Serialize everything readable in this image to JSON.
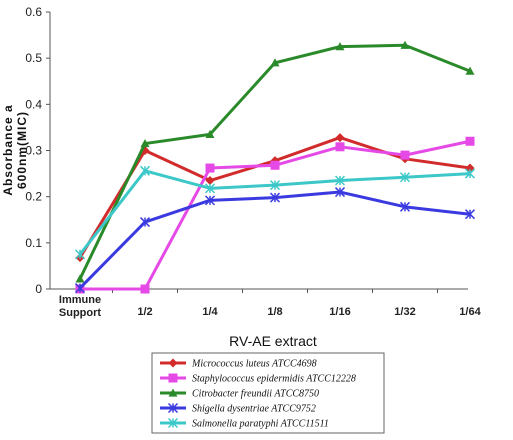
{
  "chart_data": {
    "type": "line",
    "title": "",
    "xlabel": "RV-AE extract",
    "ylabel_lines": [
      "Absorbance a",
      "600nm(MIC)"
    ],
    "categories": [
      {
        "lines": [
          "Immune",
          "Support"
        ]
      },
      {
        "lines": [
          "1/2"
        ]
      },
      {
        "lines": [
          "1/4"
        ]
      },
      {
        "lines": [
          "1/8"
        ]
      },
      {
        "lines": [
          "1/16"
        ]
      },
      {
        "lines": [
          "1/32"
        ]
      },
      {
        "lines": [
          "1/64"
        ]
      }
    ],
    "ylim": [
      0,
      0.6
    ],
    "yticks": [
      "0",
      "0.1",
      "0.2",
      "0.3",
      "0.4",
      "0.5",
      "0.6"
    ],
    "grid": false,
    "legend": "bottom",
    "series": [
      {
        "name": "Micrococcus luteus  ATCC4698",
        "color": "#d22b2b",
        "marker": "diamond",
        "values": [
          0.068,
          0.3,
          0.235,
          0.278,
          0.328,
          0.282,
          0.262
        ]
      },
      {
        "name": "Staphylococcus epidermidis ATCC12228",
        "color": "#e64ae6",
        "marker": "square",
        "values": [
          0.0,
          0.0,
          0.262,
          0.268,
          0.308,
          0.29,
          0.32
        ]
      },
      {
        "name": "Citrobacter freundii ATCC8750",
        "color": "#2a8a2a",
        "marker": "triangle",
        "values": [
          0.022,
          0.315,
          0.335,
          0.49,
          0.525,
          0.528,
          0.472
        ]
      },
      {
        "name": "Shigella dysentriae ATCC9752",
        "color": "#3a3ae0",
        "marker": "star",
        "values": [
          0.002,
          0.145,
          0.192,
          0.198,
          0.21,
          0.178,
          0.162
        ]
      },
      {
        "name": "Salmonella paratyphi ATCC11511",
        "color": "#3cc8c8",
        "marker": "star",
        "values": [
          0.075,
          0.256,
          0.218,
          0.225,
          0.235,
          0.242,
          0.25
        ]
      }
    ]
  }
}
